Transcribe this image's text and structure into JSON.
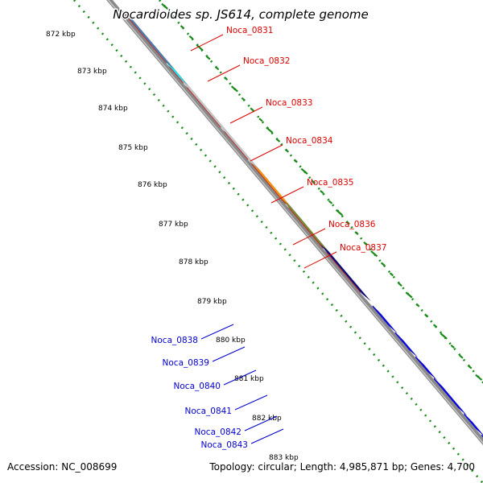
{
  "title": "Nocardioides sp. JS614, complete genome",
  "accession": "Accession: NC_008699",
  "summary": "Topology: circular; Length: 4,985,871 bp; Genes: 4,700",
  "colors": {
    "backbone": "#888888",
    "scale_dots": "#1a8a1a",
    "forward_label": "#dd0000",
    "reverse_label": "#0000cc"
  },
  "scale_ticks": [
    {
      "label": "872 kbp"
    },
    {
      "label": "873 kbp"
    },
    {
      "label": "874 kbp"
    },
    {
      "label": "875 kbp"
    },
    {
      "label": "876 kbp"
    },
    {
      "label": "877 kbp"
    },
    {
      "label": "878 kbp"
    },
    {
      "label": "879 kbp"
    },
    {
      "label": "880 kbp"
    },
    {
      "label": "881 kbp"
    },
    {
      "label": "882 kbp"
    },
    {
      "label": "883 kbp"
    }
  ],
  "forward_labels": [
    {
      "name": "Noca_0831"
    },
    {
      "name": "Noca_0832"
    },
    {
      "name": "Noca_0833"
    },
    {
      "name": "Noca_0834"
    },
    {
      "name": "Noca_0835"
    },
    {
      "name": "Noca_0836"
    },
    {
      "name": "Noca_0837"
    }
  ],
  "reverse_labels": [
    {
      "name": "Noca_0838"
    },
    {
      "name": "Noca_0839"
    },
    {
      "name": "Noca_0840"
    },
    {
      "name": "Noca_0841"
    },
    {
      "name": "Noca_0842"
    },
    {
      "name": "Noca_0843"
    }
  ]
}
